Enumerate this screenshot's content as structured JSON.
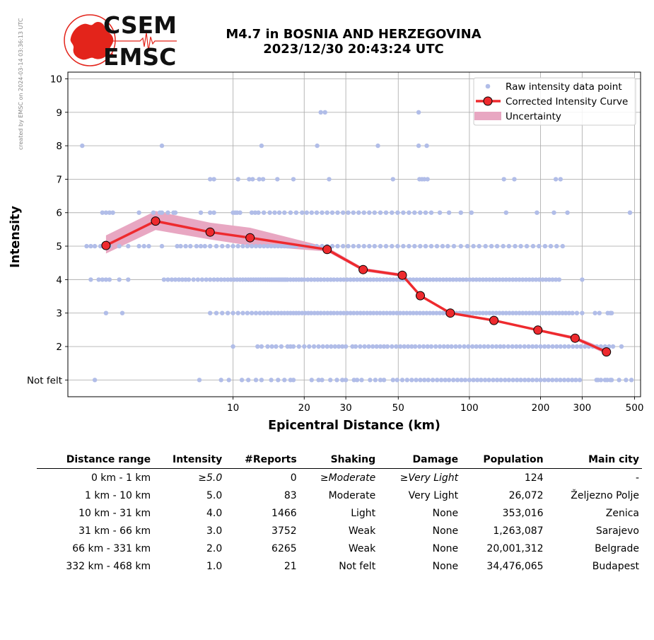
{
  "credit": "created by EMSC on 2024-03-14 03:36:13 UTC",
  "logo": {
    "line1": "CSEM",
    "line2": "EMSC",
    "red": "#e3241b"
  },
  "title": {
    "line1": "M4.7 in BOSNIA AND HERZEGOVINA",
    "line2": "2023/12/30 20:43:24 UTC"
  },
  "colors": {
    "raw": "#b1bde8",
    "curve": "#ee2a2e",
    "uncertainty": "#e8a7c2"
  },
  "chart_data": {
    "type": "scatter",
    "xscale": "log",
    "xlim": [
      2,
      530
    ],
    "ylim": [
      0.5,
      10.2
    ],
    "xlabel": "Epicentral Distance (km)",
    "ylabel": "Intensity",
    "x_ticks": [
      10,
      20,
      30,
      50,
      100,
      200,
      300,
      500
    ],
    "x_tick_labels": [
      "10",
      "20",
      "30",
      "50",
      "100",
      "200",
      "300",
      "500"
    ],
    "y_ticks": [
      1,
      2,
      3,
      4,
      5,
      6,
      7,
      8,
      9,
      10
    ],
    "y_tick_labels": [
      "Not felt",
      "2",
      "3",
      "4",
      "5",
      "6",
      "7",
      "8",
      "9",
      "10"
    ],
    "grid": true,
    "legend": {
      "position": "top-right",
      "entries": [
        "Raw intensity data point",
        "Corrected Intensity Curve",
        "Uncertainty"
      ]
    },
    "curve": {
      "name": "Corrected Intensity Curve",
      "x": [
        2.9,
        4.7,
        8.0,
        11.8,
        25.0,
        35.5,
        52.0,
        62.0,
        83.0,
        127.0,
        195.0,
        280.0,
        380.0
      ],
      "y": [
        5.02,
        5.75,
        5.42,
        5.25,
        4.9,
        4.3,
        4.13,
        3.52,
        3.0,
        2.78,
        2.49,
        2.25,
        1.84
      ]
    },
    "uncertainty": {
      "x": [
        2.9,
        4.7,
        8.0,
        11.8,
        25.0,
        35.5,
        52.0,
        62.0,
        83.0,
        127.0,
        195.0,
        280.0,
        380.0
      ],
      "lower": [
        4.78,
        5.48,
        5.2,
        5.02,
        4.84,
        4.25,
        4.08,
        3.48,
        2.97,
        2.75,
        2.46,
        2.2,
        1.77
      ],
      "upper": [
        5.32,
        6.05,
        5.7,
        5.55,
        4.97,
        4.35,
        4.18,
        3.56,
        3.03,
        2.81,
        2.52,
        2.3,
        1.92
      ]
    },
    "raw_points": [
      {
        "y": 10,
        "x": []
      },
      {
        "y": 9,
        "x": [
          23.5,
          24.5,
          61
        ]
      },
      {
        "y": 8,
        "x": [
          2.3,
          5.0,
          13.2,
          22.7,
          41,
          61,
          66
        ]
      },
      {
        "y": 7,
        "x": [
          8.0,
          8.3,
          10.5,
          11.7,
          12.1,
          12.9,
          13.4,
          15.4,
          18,
          25.5,
          47.5,
          61.5,
          63,
          64.5,
          66.5,
          140,
          155,
          232,
          243
        ]
      },
      {
        "y": 6,
        "x": [
          2.8,
          2.9,
          3.0,
          3.1,
          4.0,
          4.6,
          4.9,
          5.0,
          5.3,
          5.6,
          5.7,
          7.3,
          8.0,
          8.3,
          10.0,
          10.2,
          10.4,
          10.7,
          12.0,
          12.4,
          12.8,
          13.5,
          14.3,
          15.0,
          15.7,
          16.5,
          17.5,
          18.5,
          19.6,
          20.5,
          21.5,
          22.6,
          23.8,
          25.0,
          26.3,
          27.7,
          29.2,
          30.7,
          32.3,
          34.0,
          35.8,
          37.7,
          39.7,
          42.0,
          44.4,
          47.0,
          49.7,
          52.5,
          55.5,
          58.6,
          61.9,
          65.3,
          69,
          75,
          82,
          92,
          102,
          143,
          193,
          228,
          260,
          478
        ]
      },
      {
        "y": 5,
        "x": [
          2.4,
          2.5,
          2.6,
          2.75,
          2.85,
          3.0,
          3.3,
          3.6,
          4.0,
          4.2,
          4.4,
          5.0,
          5.8,
          6.0,
          6.3,
          6.6,
          7.0,
          7.3,
          7.6,
          8.0,
          8.5,
          9.0,
          9.5,
          10.0,
          10.5,
          11.0,
          11.5,
          12.0,
          12.5,
          13.0,
          13.5,
          14.0,
          14.5,
          15.0,
          15.5,
          16.0,
          16.5,
          17.0,
          17.5,
          18.0,
          18.5,
          19.6,
          20.5,
          21.5,
          22.6,
          23.8,
          25.0,
          26.3,
          27.7,
          29.2,
          30.7,
          32.3,
          34.0,
          35.8,
          37.7,
          39.7,
          42.0,
          44.4,
          47.0,
          49.7,
          52.5,
          55.5,
          58.6,
          61.9,
          65.3,
          69,
          72.9,
          77,
          81,
          86,
          92,
          98,
          104,
          110,
          117,
          124,
          131,
          139,
          147,
          156,
          165,
          175,
          186,
          197,
          209,
          221,
          234,
          248
        ]
      },
      {
        "y": 4,
        "x": [
          2.5,
          2.7,
          2.8,
          2.9,
          3.0,
          3.3,
          3.6,
          5.1,
          5.3,
          5.5,
          5.7,
          5.9,
          6.1,
          6.3,
          6.5,
          6.8,
          7.1,
          7.4,
          7.7,
          8.0,
          8.3,
          8.6,
          8.9,
          9.2,
          9.5,
          9.8,
          10.1,
          10.4,
          10.7,
          11.0,
          11.3,
          11.6,
          11.9,
          12.2,
          12.5,
          12.8,
          13.1,
          13.4,
          13.7,
          14.0,
          14.3,
          14.6,
          14.9,
          15.2,
          15.5,
          15.8,
          16.1,
          16.4,
          16.7,
          17.0,
          17.5,
          18.0,
          18.5,
          19.0,
          19.5,
          20.0,
          20.7,
          21.4,
          22.1,
          22.8,
          23.5,
          24.3,
          25.1,
          25.9,
          26.7,
          27.6,
          28.5,
          29.4,
          30.4,
          31.4,
          32.4,
          33.5,
          34.6,
          35.7,
          36.9,
          38.1,
          39.3,
          40.6,
          41.9,
          43.3,
          44.7,
          46.2,
          47.7,
          49.3,
          50.9,
          52.6,
          54.3,
          56.1,
          57.9,
          59.8,
          61.8,
          63.8,
          65.9,
          68.1,
          70.3,
          72.6,
          75.0,
          77.5,
          80.0,
          82.6,
          85.3,
          88.1,
          91.0,
          94.0,
          97.1,
          100.3,
          103.6,
          107.0,
          110.5,
          114.1,
          117.8,
          121.7,
          125.7,
          129.8,
          134.1,
          138.5,
          143.0,
          147.7,
          152.6,
          157.6,
          162.8,
          168.1,
          173.6,
          179.3,
          185.2,
          191.3,
          197.6,
          204.1,
          210.8,
          217.7,
          224.8,
          232.2,
          239.8,
          300
        ]
      },
      {
        "y": 3,
        "x": [
          2.9,
          3.4,
          8.0,
          8.5,
          9.0,
          9.5,
          10.0,
          10.5,
          11.0,
          11.5,
          12.0,
          12.5,
          13.0,
          13.5,
          14.0,
          14.5,
          15.0,
          15.5,
          16.0,
          16.5,
          17.0,
          17.5,
          18.0,
          18.5,
          19.0,
          19.6,
          20.2,
          20.8,
          21.4,
          22.1,
          22.8,
          23.5,
          24.3,
          25.1,
          25.9,
          26.7,
          27.6,
          28.5,
          29.4,
          30.4,
          31.4,
          32.4,
          33.5,
          34.6,
          35.7,
          36.9,
          38.1,
          39.3,
          40.6,
          41.9,
          43.3,
          44.7,
          46.2,
          47.7,
          49.3,
          50.9,
          52.6,
          54.3,
          56.1,
          57.9,
          59.8,
          61.8,
          63.8,
          65.9,
          68.1,
          70.3,
          72.6,
          75.0,
          77.5,
          80.0,
          82.6,
          85.3,
          88.1,
          91.0,
          94.0,
          97.1,
          100.3,
          103.6,
          107.0,
          110.5,
          114.1,
          117.8,
          121.7,
          125.7,
          129.8,
          134.1,
          138.5,
          143.0,
          147.7,
          152.6,
          157.6,
          162.8,
          168.1,
          173.6,
          179.3,
          185.2,
          191.3,
          197.6,
          204.1,
          210.8,
          217.7,
          224.8,
          232.2,
          239.8,
          247.7,
          255.8,
          264.2,
          273.0,
          285,
          300,
          340,
          355,
          385,
          395,
          400
        ]
      },
      {
        "y": 2,
        "x": [
          10.0,
          12.7,
          13.2,
          14.0,
          14.6,
          15.2,
          16.0,
          17.0,
          17.5,
          18.0,
          19.0,
          20.0,
          21.0,
          22.0,
          23.0,
          24.0,
          25.0,
          26.0,
          27.0,
          28.0,
          29.0,
          30.0,
          32.0,
          33.0,
          34.5,
          36.0,
          37.5,
          39.0,
          40.5,
          42.0,
          43.5,
          45.0,
          47.0,
          49.0,
          51.0,
          53.0,
          55.0,
          57.0,
          59.0,
          61.5,
          64.0,
          66.5,
          69.0,
          72.0,
          75.0,
          78.0,
          81.0,
          84.0,
          87.5,
          91.0,
          95.0,
          99.0,
          103.0,
          107.0,
          111.0,
          115.5,
          120.0,
          125.0,
          130.0,
          135.0,
          140.0,
          146.0,
          152.0,
          158.0,
          164.0,
          171.0,
          178.0,
          185.0,
          192.0,
          200.0,
          208.0,
          216.0,
          225.0,
          234.0,
          243.0,
          253.0,
          263.0,
          274.0,
          285.0,
          296.0,
          308.0,
          320.0,
          333.0,
          346.0,
          360.0,
          375.0,
          390.0,
          405.0,
          440.0
        ]
      },
      {
        "y": 1,
        "x": [
          2.6,
          7.2,
          8.9,
          9.6,
          10.9,
          11.6,
          12.5,
          13.2,
          14.5,
          15.5,
          16.5,
          17.5,
          18.0,
          21.5,
          23.0,
          23.8,
          25.8,
          27.5,
          29.0,
          30.0,
          32.5,
          33.5,
          35.0,
          38.0,
          40.0,
          42.0,
          43.5,
          47.5,
          49.5,
          52.0,
          54.5,
          57.0,
          59.5,
          62.0,
          64.5,
          67.0,
          70.0,
          73.0,
          76.0,
          79.0,
          82.0,
          85.5,
          89.0,
          92.5,
          96.0,
          100.0,
          104.0,
          108.0,
          112.0,
          116.5,
          121.0,
          126.0,
          131.0,
          136.0,
          141.5,
          147.0,
          153.0,
          159.0,
          165.0,
          171.5,
          178.0,
          185.0,
          192.5,
          200.0,
          208.0,
          216.0,
          224.5,
          233.5,
          242.5,
          252.0,
          262.0,
          272.0,
          282.0,
          293.0,
          345.0,
          350.0,
          360.0,
          375.0,
          383.0,
          395.0,
          400.0,
          430.0,
          460.0,
          485.0
        ]
      }
    ]
  },
  "table": {
    "headers": [
      "Distance range",
      "Intensity",
      "#Reports",
      "Shaking",
      "Damage",
      "Population",
      "Main city"
    ],
    "rows": [
      {
        "range": "0 km -    1 km",
        "intensity": "≥5.0",
        "reports": "0",
        "shaking": "≥Moderate",
        "damage": "≥Very Light",
        "population": "124",
        "city": "-"
      },
      {
        "range": "1 km -   10 km",
        "intensity": "5.0",
        "reports": "83",
        "shaking": "Moderate",
        "damage": "Very Light",
        "population": "26,072",
        "city": "Željezno Polje"
      },
      {
        "range": "10 km -   31 km",
        "intensity": "4.0",
        "reports": "1466",
        "shaking": "Light",
        "damage": "None",
        "population": "353,016",
        "city": "Zenica"
      },
      {
        "range": "31 km -   66 km",
        "intensity": "3.0",
        "reports": "3752",
        "shaking": "Weak",
        "damage": "None",
        "population": "1,263,087",
        "city": "Sarajevo"
      },
      {
        "range": "66 km -  331 km",
        "intensity": "2.0",
        "reports": "6265",
        "shaking": "Weak",
        "damage": "None",
        "population": "20,001,312",
        "city": "Belgrade"
      },
      {
        "range": "332 km -  468 km",
        "intensity": "1.0",
        "reports": "21",
        "shaking": "Not felt",
        "damage": "None",
        "population": "34,476,065",
        "city": "Budapest"
      }
    ]
  }
}
